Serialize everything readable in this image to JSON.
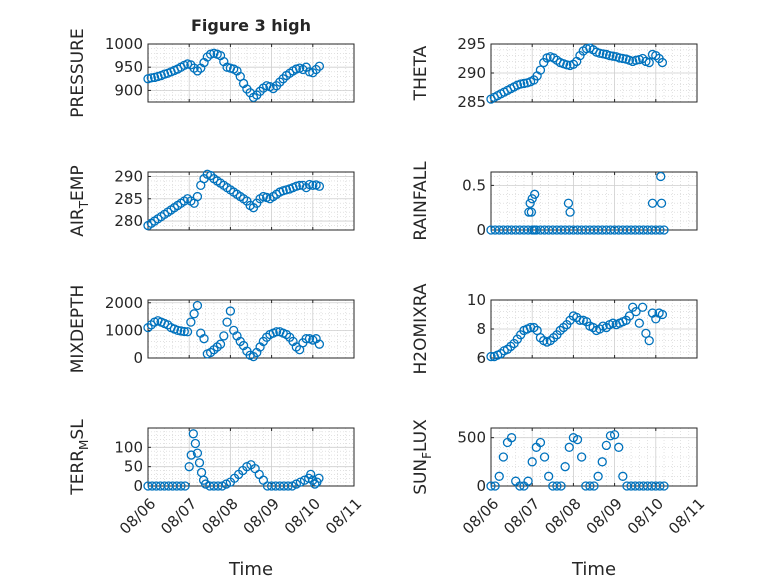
{
  "figure": {
    "title": "Figure 3 high",
    "x_label": "Time",
    "x_ticks": [
      "08/06",
      "08/07",
      "08/08",
      "08/09",
      "08/10",
      "08/11"
    ],
    "marker_color": "#0072BD",
    "marker": "open-circle"
  },
  "chart_data": [
    {
      "type": "scatter",
      "id": "pressure",
      "ylabel": "PRESSURE",
      "ylim": [
        875,
        1000
      ],
      "yticks": [
        900,
        950,
        1000
      ],
      "x": [
        0.0,
        0.08,
        0.16,
        0.24,
        0.32,
        0.4,
        0.48,
        0.56,
        0.64,
        0.72,
        0.8,
        0.88,
        0.96,
        1.04,
        1.12,
        1.2,
        1.28,
        1.36,
        1.44,
        1.52,
        1.6,
        1.68,
        1.76,
        1.84,
        1.92,
        2.0,
        2.08,
        2.16,
        2.24,
        2.32,
        2.4,
        2.48,
        2.56,
        2.64,
        2.72,
        2.8,
        2.88,
        2.96,
        3.04,
        3.12,
        3.2,
        3.28,
        3.36,
        3.44,
        3.52,
        3.6,
        3.68,
        3.76,
        3.84,
        3.92,
        4.0,
        4.08,
        4.16
      ],
      "y": [
        925,
        927,
        928,
        930,
        932,
        935,
        937,
        940,
        943,
        946,
        950,
        954,
        957,
        955,
        948,
        942,
        948,
        960,
        972,
        978,
        980,
        978,
        975,
        962,
        950,
        948,
        946,
        942,
        930,
        915,
        903,
        895,
        885,
        890,
        898,
        905,
        910,
        908,
        904,
        910,
        918,
        925,
        932,
        937,
        942,
        946,
        948,
        945,
        950,
        940,
        938,
        945,
        952
      ]
    },
    {
      "type": "scatter",
      "id": "theta",
      "ylabel": "THETA",
      "ylim": [
        285,
        295
      ],
      "yticks": [
        285,
        290,
        295
      ],
      "x": [
        0.0,
        0.08,
        0.16,
        0.24,
        0.32,
        0.4,
        0.48,
        0.56,
        0.64,
        0.72,
        0.8,
        0.88,
        0.96,
        1.04,
        1.12,
        1.2,
        1.28,
        1.36,
        1.44,
        1.52,
        1.6,
        1.68,
        1.76,
        1.84,
        1.92,
        2.0,
        2.08,
        2.16,
        2.24,
        2.32,
        2.4,
        2.48,
        2.56,
        2.64,
        2.72,
        2.8,
        2.88,
        2.96,
        3.04,
        3.12,
        3.2,
        3.28,
        3.36,
        3.44,
        3.52,
        3.6,
        3.68,
        3.76,
        3.84,
        3.92,
        4.0,
        4.08,
        4.16
      ],
      "y": [
        285.5,
        285.8,
        286.1,
        286.4,
        286.7,
        287.0,
        287.3,
        287.6,
        287.9,
        288.1,
        288.2,
        288.3,
        288.5,
        288.8,
        289.5,
        290.5,
        291.8,
        292.6,
        292.8,
        292.6,
        292.2,
        291.8,
        291.6,
        291.4,
        291.3,
        291.5,
        292.0,
        293.0,
        293.8,
        294.2,
        294.3,
        294.0,
        293.6,
        293.4,
        293.3,
        293.2,
        293.0,
        292.9,
        292.8,
        292.6,
        292.5,
        292.4,
        292.2,
        292.0,
        292.2,
        292.3,
        292.5,
        292.0,
        291.8,
        293.2,
        293.0,
        292.5,
        291.8
      ]
    },
    {
      "type": "scatter",
      "id": "air_temp",
      "ylabel": "AIR",
      "ylabel_sub": "T",
      "ylabel_rest": "EMP",
      "ylim": [
        278,
        291
      ],
      "yticks": [
        280,
        285,
        290
      ],
      "x": [
        0.0,
        0.08,
        0.16,
        0.24,
        0.32,
        0.4,
        0.48,
        0.56,
        0.64,
        0.72,
        0.8,
        0.88,
        0.96,
        1.04,
        1.12,
        1.2,
        1.28,
        1.36,
        1.44,
        1.52,
        1.6,
        1.68,
        1.76,
        1.84,
        1.92,
        2.0,
        2.08,
        2.16,
        2.24,
        2.32,
        2.4,
        2.48,
        2.56,
        2.64,
        2.72,
        2.8,
        2.88,
        2.96,
        3.04,
        3.12,
        3.2,
        3.28,
        3.36,
        3.44,
        3.52,
        3.6,
        3.68,
        3.76,
        3.84,
        3.92,
        4.0,
        4.08,
        4.16
      ],
      "y": [
        279.0,
        279.5,
        280.0,
        280.5,
        281.0,
        281.5,
        282.0,
        282.5,
        283.0,
        283.5,
        284.0,
        284.5,
        285.0,
        284.5,
        284.0,
        285.5,
        288.0,
        289.5,
        290.5,
        290.2,
        289.5,
        289.0,
        288.5,
        288.0,
        287.5,
        287.0,
        286.5,
        286.0,
        285.5,
        285.0,
        284.5,
        283.5,
        283.0,
        284.0,
        285.0,
        285.5,
        285.3,
        285.0,
        285.5,
        286.0,
        286.5,
        286.8,
        287.0,
        287.2,
        287.5,
        287.8,
        288.0,
        288.0,
        287.5,
        288.2,
        288.0,
        288.1,
        287.8
      ]
    },
    {
      "type": "scatter",
      "id": "rainfall",
      "ylabel": "RAINFALL",
      "ylim": [
        0,
        0.65
      ],
      "yticks": [
        0,
        0.5
      ],
      "x": [
        0.0,
        0.1,
        0.2,
        0.3,
        0.4,
        0.5,
        0.6,
        0.7,
        0.8,
        0.9,
        1.0,
        1.05,
        1.1,
        1.2,
        1.3,
        1.4,
        1.5,
        1.6,
        1.7,
        1.8,
        1.9,
        2.0,
        2.1,
        2.2,
        2.3,
        2.4,
        2.5,
        2.6,
        2.7,
        2.8,
        2.9,
        3.0,
        3.1,
        3.2,
        3.3,
        3.4,
        3.5,
        3.6,
        3.7,
        3.8,
        3.9,
        4.0,
        4.1,
        4.2,
        0.92,
        0.95,
        0.98,
        1.0,
        1.06,
        1.88,
        1.92,
        3.92,
        4.12,
        4.14
      ],
      "y": [
        0,
        0,
        0,
        0,
        0,
        0,
        0,
        0,
        0,
        0,
        0,
        0,
        0,
        0,
        0,
        0,
        0,
        0,
        0,
        0,
        0,
        0,
        0,
        0,
        0,
        0,
        0,
        0,
        0,
        0,
        0,
        0,
        0,
        0,
        0,
        0,
        0,
        0,
        0,
        0,
        0,
        0,
        0,
        0,
        0.2,
        0.3,
        0.2,
        0.35,
        0.4,
        0.3,
        0.2,
        0.3,
        0.6,
        0.3
      ]
    },
    {
      "type": "scatter",
      "id": "mixdepth",
      "ylabel": "MIXDEPTH",
      "ylim": [
        0,
        2100
      ],
      "yticks": [
        0,
        1000,
        2000
      ],
      "x": [
        0.0,
        0.08,
        0.16,
        0.24,
        0.32,
        0.4,
        0.48,
        0.56,
        0.64,
        0.72,
        0.8,
        0.88,
        0.96,
        1.04,
        1.12,
        1.2,
        1.28,
        1.36,
        1.44,
        1.52,
        1.6,
        1.68,
        1.76,
        1.84,
        1.92,
        2.0,
        2.08,
        2.16,
        2.24,
        2.32,
        2.4,
        2.48,
        2.56,
        2.64,
        2.72,
        2.8,
        2.88,
        2.96,
        3.04,
        3.12,
        3.2,
        3.28,
        3.36,
        3.44,
        3.52,
        3.6,
        3.68,
        3.76,
        3.84,
        3.92,
        4.0,
        4.08,
        4.16
      ],
      "y": [
        1100,
        1200,
        1300,
        1350,
        1300,
        1250,
        1200,
        1100,
        1050,
        1000,
        980,
        960,
        950,
        1300,
        1600,
        1900,
        900,
        700,
        150,
        200,
        300,
        400,
        500,
        800,
        1300,
        1700,
        1000,
        800,
        600,
        450,
        250,
        100,
        50,
        200,
        400,
        600,
        750,
        850,
        900,
        950,
        950,
        900,
        850,
        750,
        600,
        400,
        300,
        550,
        700,
        700,
        650,
        700,
        500
      ]
    },
    {
      "type": "scatter",
      "id": "h2omixra",
      "ylabel": "H2OMIXRA",
      "ylim": [
        6,
        10
      ],
      "yticks": [
        6,
        8,
        10
      ],
      "x": [
        0.0,
        0.08,
        0.16,
        0.24,
        0.32,
        0.4,
        0.48,
        0.56,
        0.64,
        0.72,
        0.8,
        0.88,
        0.96,
        1.04,
        1.12,
        1.2,
        1.28,
        1.36,
        1.44,
        1.52,
        1.6,
        1.68,
        1.76,
        1.84,
        1.92,
        2.0,
        2.08,
        2.16,
        2.24,
        2.32,
        2.4,
        2.48,
        2.56,
        2.64,
        2.72,
        2.8,
        2.88,
        2.96,
        3.04,
        3.12,
        3.2,
        3.28,
        3.36,
        3.44,
        3.52,
        3.6,
        3.68,
        3.76,
        3.84,
        3.92,
        4.0,
        4.08,
        4.16
      ],
      "y": [
        6.1,
        6.1,
        6.2,
        6.3,
        6.5,
        6.6,
        6.8,
        7.0,
        7.3,
        7.6,
        7.9,
        8.0,
        8.1,
        8.1,
        7.9,
        7.4,
        7.2,
        7.1,
        7.2,
        7.4,
        7.6,
        7.9,
        8.1,
        8.3,
        8.6,
        8.9,
        8.8,
        8.6,
        8.6,
        8.5,
        8.2,
        8.1,
        7.9,
        8.0,
        8.2,
        8.1,
        8.3,
        8.4,
        8.3,
        8.4,
        8.5,
        8.6,
        8.9,
        9.5,
        9.2,
        8.4,
        9.5,
        7.7,
        7.2,
        9.1,
        8.7,
        9.1,
        9.0
      ]
    },
    {
      "type": "scatter",
      "id": "terr_msl",
      "ylabel": "TERR",
      "ylabel_sub": "M",
      "ylabel_rest": "SL",
      "ylim": [
        0,
        150
      ],
      "yticks": [
        0,
        50,
        100
      ],
      "x": [
        0.0,
        0.1,
        0.2,
        0.3,
        0.4,
        0.5,
        0.6,
        0.7,
        0.8,
        0.9,
        1.0,
        1.05,
        1.1,
        1.15,
        1.2,
        1.25,
        1.3,
        1.35,
        1.4,
        1.5,
        1.6,
        1.7,
        1.8,
        1.9,
        2.0,
        2.1,
        2.2,
        2.3,
        2.4,
        2.5,
        2.6,
        2.7,
        2.8,
        2.9,
        3.0,
        3.1,
        3.2,
        3.3,
        3.4,
        3.5,
        3.6,
        3.7,
        3.8,
        3.9,
        3.95,
        4.0,
        4.05,
        4.1,
        4.15
      ],
      "y": [
        0,
        0,
        0,
        0,
        0,
        0,
        0,
        0,
        0,
        0,
        50,
        80,
        135,
        110,
        85,
        60,
        35,
        15,
        5,
        0,
        0,
        0,
        0,
        5,
        10,
        20,
        30,
        40,
        50,
        55,
        45,
        30,
        15,
        0,
        0,
        0,
        0,
        0,
        0,
        0,
        5,
        10,
        15,
        20,
        30,
        15,
        5,
        10,
        20
      ]
    },
    {
      "type": "scatter",
      "id": "sun_flux",
      "ylabel": "SUN",
      "ylabel_sub": "F",
      "ylabel_rest": "LUX",
      "ylim": [
        0,
        600
      ],
      "yticks": [
        0,
        500
      ],
      "x": [
        0.0,
        0.1,
        0.2,
        0.3,
        0.4,
        0.5,
        0.6,
        0.7,
        0.8,
        0.9,
        1.0,
        1.1,
        1.2,
        1.3,
        1.4,
        1.5,
        1.6,
        1.7,
        1.8,
        1.9,
        2.0,
        2.1,
        2.2,
        2.3,
        2.4,
        2.5,
        2.6,
        2.7,
        2.8,
        2.9,
        3.0,
        3.1,
        3.2,
        3.3,
        3.4,
        3.5,
        3.6,
        3.7,
        3.8,
        3.9,
        4.0,
        4.1,
        4.2
      ],
      "y": [
        0,
        0,
        100,
        300,
        450,
        500,
        50,
        0,
        0,
        50,
        250,
        400,
        450,
        300,
        100,
        0,
        0,
        0,
        200,
        400,
        500,
        480,
        300,
        0,
        0,
        0,
        100,
        250,
        420,
        520,
        530,
        400,
        100,
        0,
        0,
        0,
        0,
        0,
        0,
        0,
        0,
        0,
        0
      ]
    }
  ]
}
